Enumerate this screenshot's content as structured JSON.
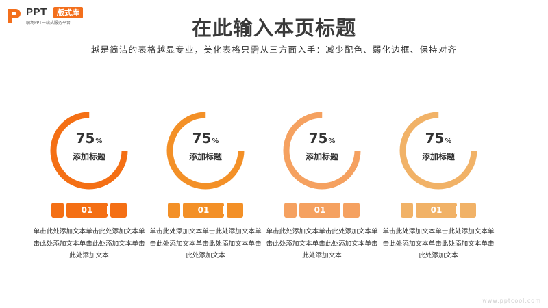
{
  "brand": {
    "name": "PPT",
    "badge": "版式库",
    "tagline": "职场PPT一站式服务平台"
  },
  "title": "在此输入本页标题",
  "subtitle": "越是简洁的表格越显专业，美化表格只需从三方面入手：减少配色、弱化边框、保持对齐",
  "cards": [
    {
      "percent": "75",
      "percent_symbol": "%",
      "percent_value": 0.75,
      "heading": "添加标题",
      "tag": "01",
      "color": "#f46f14",
      "body": "单击此处添加文本单击此处添加文本单击此处添加文本单击此处添加文本单击此处添加文本"
    },
    {
      "percent": "75",
      "percent_symbol": "%",
      "percent_value": 0.75,
      "heading": "添加标题",
      "tag": "01",
      "color": "#f39027",
      "body": "单击此处添加文本单击此处添加文本单击此处添加文本单击此处添加文本单击此处添加文本"
    },
    {
      "percent": "75",
      "percent_symbol": "%",
      "percent_value": 0.75,
      "heading": "添加标题",
      "tag": "01",
      "color": "#f5a160",
      "body": "单击此处添加文本单击此处添加文本单击此处添加文本单击此处添加文本单击此处添加文本"
    },
    {
      "percent": "75",
      "percent_symbol": "%",
      "percent_value": 0.75,
      "heading": "添加标题",
      "tag": "01",
      "color": "#f1b267",
      "body": "单击此处添加文本单击此处添加文本单击此处添加文本单击此处添加文本单击此处添加文本"
    }
  ],
  "watermark": "www.pptcool.com"
}
